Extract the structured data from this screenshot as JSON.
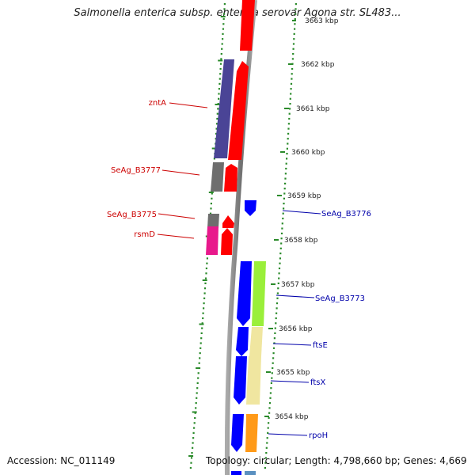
{
  "header": {
    "title": "Salmonella enterica subsp. enterica serovar Agona str. SL483..."
  },
  "footer": {
    "accession": "Accession: NC_011149",
    "summary": "Topology: circular; Length: 4,798,660 bp; Genes: 4,669"
  },
  "ruler": {
    "unit": "kbp",
    "ticks": [
      {
        "position_kbp": 3663,
        "label": "3663 kbp"
      },
      {
        "position_kbp": 3662,
        "label": "3662 kbp"
      },
      {
        "position_kbp": 3661,
        "label": "3661 kbp"
      },
      {
        "position_kbp": 3660,
        "label": "3660 kbp"
      },
      {
        "position_kbp": 3659,
        "label": "3659 kbp"
      },
      {
        "position_kbp": 3658,
        "label": "3658 kbp"
      },
      {
        "position_kbp": 3657,
        "label": "3657 kbp"
      },
      {
        "position_kbp": 3656,
        "label": "3656 kbp"
      },
      {
        "position_kbp": 3655,
        "label": "3655 kbp"
      },
      {
        "position_kbp": 3654,
        "label": "3654 kbp"
      }
    ]
  },
  "gene_labels": {
    "left": [
      "zntA",
      "SeAg_B3777",
      "SeAg_B3775",
      "rsmD"
    ],
    "right": [
      "SeAg_B3776",
      "SeAg_B3773",
      "ftsE",
      "ftsX",
      "rpoH"
    ]
  },
  "colors": {
    "backbone": "#8a8a8a",
    "cds": "#ff0000",
    "cds_forward": "#0000ff",
    "tick_marks": "#2a8a2a",
    "label_left": "#cc0000",
    "label_right": "#0000aa",
    "cog_purple": "#4a4496",
    "cog_gray": "#6e6e6e",
    "cog_magenta": "#e8198c",
    "cog_green": "#9aef3a",
    "cog_khaki": "#f0e6a0",
    "cog_orange": "#ff9a18",
    "cog_steel": "#5a90c0"
  }
}
